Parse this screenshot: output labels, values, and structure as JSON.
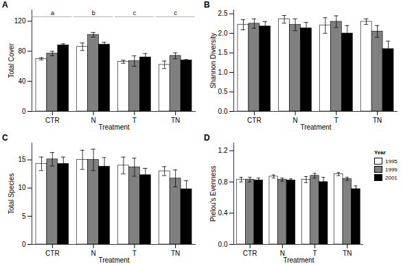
{
  "chart_data": [
    {
      "type": "bar",
      "title": "A",
      "xlabel": "Treatment",
      "ylabel": "Total Cover",
      "categories": [
        "CTR",
        "N",
        "T",
        "TN"
      ],
      "series": [
        {
          "name": "1995",
          "color": "#ffffff",
          "values": [
            70,
            86,
            66,
            62
          ],
          "errors": [
            1.5,
            5,
            2,
            5
          ]
        },
        {
          "name": "1999",
          "color": "#808080",
          "values": [
            77,
            102,
            67,
            74
          ],
          "errors": [
            3,
            3,
            7,
            4
          ]
        },
        {
          "name": "2001",
          "color": "#000000",
          "values": [
            88,
            89,
            72,
            68
          ],
          "errors": [
            2,
            3,
            5,
            1
          ]
        }
      ],
      "annotations": [
        "a",
        "b",
        "c",
        "c"
      ],
      "annotation_y": 126,
      "ylim": [
        0,
        135
      ],
      "yticks": [
        0,
        40,
        80,
        120
      ],
      "grid": false,
      "legend": false
    },
    {
      "type": "bar",
      "title": "B",
      "xlabel": "Treatment",
      "ylabel": "Shannon Diversity",
      "categories": [
        "CTR",
        "N",
        "T",
        "TN"
      ],
      "series": [
        {
          "name": "1995",
          "color": "#ffffff",
          "values": [
            2.22,
            2.36,
            2.2,
            2.3
          ],
          "errors": [
            0.13,
            0.1,
            0.2,
            0.07
          ]
        },
        {
          "name": "1999",
          "color": "#808080",
          "values": [
            2.25,
            2.22,
            2.3,
            2.05
          ],
          "errors": [
            0.12,
            0.15,
            0.15,
            0.15
          ]
        },
        {
          "name": "2001",
          "color": "#000000",
          "values": [
            2.18,
            2.13,
            2.0,
            1.6
          ],
          "errors": [
            0.12,
            0.15,
            0.2,
            0.2
          ]
        }
      ],
      "ylim": [
        0,
        2.6
      ],
      "yticks": [
        {
          "value": 0,
          "label": "0.0"
        },
        {
          "value": 0.5,
          "label": "0.5"
        },
        {
          "value": 1,
          "label": "1.0"
        },
        {
          "value": 1.5,
          "label": "1.5"
        },
        {
          "value": 2,
          "label": "2.0"
        },
        {
          "value": 2.5,
          "label": "2.5"
        }
      ],
      "grid": false,
      "legend": false
    },
    {
      "type": "bar",
      "title": "C",
      "xlabel": "Treatment",
      "ylabel": "Total Species",
      "categories": [
        "CTR",
        "N",
        "T",
        "TN"
      ],
      "series": [
        {
          "name": "1995",
          "color": "#ffffff",
          "values": [
            14.3,
            15,
            14,
            13
          ],
          "errors": [
            1.2,
            1.7,
            1.5,
            0.8
          ]
        },
        {
          "name": "1999",
          "color": "#808080",
          "values": [
            15.1,
            15,
            13.7,
            11.7
          ],
          "errors": [
            1.2,
            1.9,
            1.6,
            1.5
          ]
        },
        {
          "name": "2001",
          "color": "#000000",
          "values": [
            14.3,
            13.8,
            12.3,
            9.8
          ],
          "errors": [
            1.2,
            1.6,
            1.2,
            1.5
          ]
        }
      ],
      "ylim": [
        0,
        18
      ],
      "yticks": [
        0,
        5,
        10,
        15
      ],
      "grid": false,
      "legend": false
    },
    {
      "type": "bar",
      "title": "D",
      "xlabel": "Treatment",
      "ylabel": "Pielou's Evenness",
      "categories": [
        "CTR",
        "N",
        "T",
        "TN"
      ],
      "series": [
        {
          "name": "1995",
          "color": "#ffffff",
          "values": [
            0.83,
            0.87,
            0.83,
            0.9
          ],
          "errors": [
            0.03,
            0.02,
            0.04,
            0.02
          ]
        },
        {
          "name": "1999",
          "color": "#808080",
          "values": [
            0.83,
            0.83,
            0.88,
            0.84
          ],
          "errors": [
            0.03,
            0.02,
            0.03,
            0.02
          ]
        },
        {
          "name": "2001",
          "color": "#000000",
          "values": [
            0.82,
            0.82,
            0.8,
            0.71
          ],
          "errors": [
            0.03,
            0.02,
            0.06,
            0.04
          ]
        }
      ],
      "ylim": [
        0,
        1.3
      ],
      "yticks": [
        {
          "value": 0,
          "label": "0.0"
        },
        {
          "value": 0.4,
          "label": "0.4"
        },
        {
          "value": 0.8,
          "label": "0.8"
        },
        {
          "value": 1.2,
          "label": "1.2"
        }
      ],
      "grid": false,
      "legend": "right",
      "legend_title": "Year"
    }
  ]
}
